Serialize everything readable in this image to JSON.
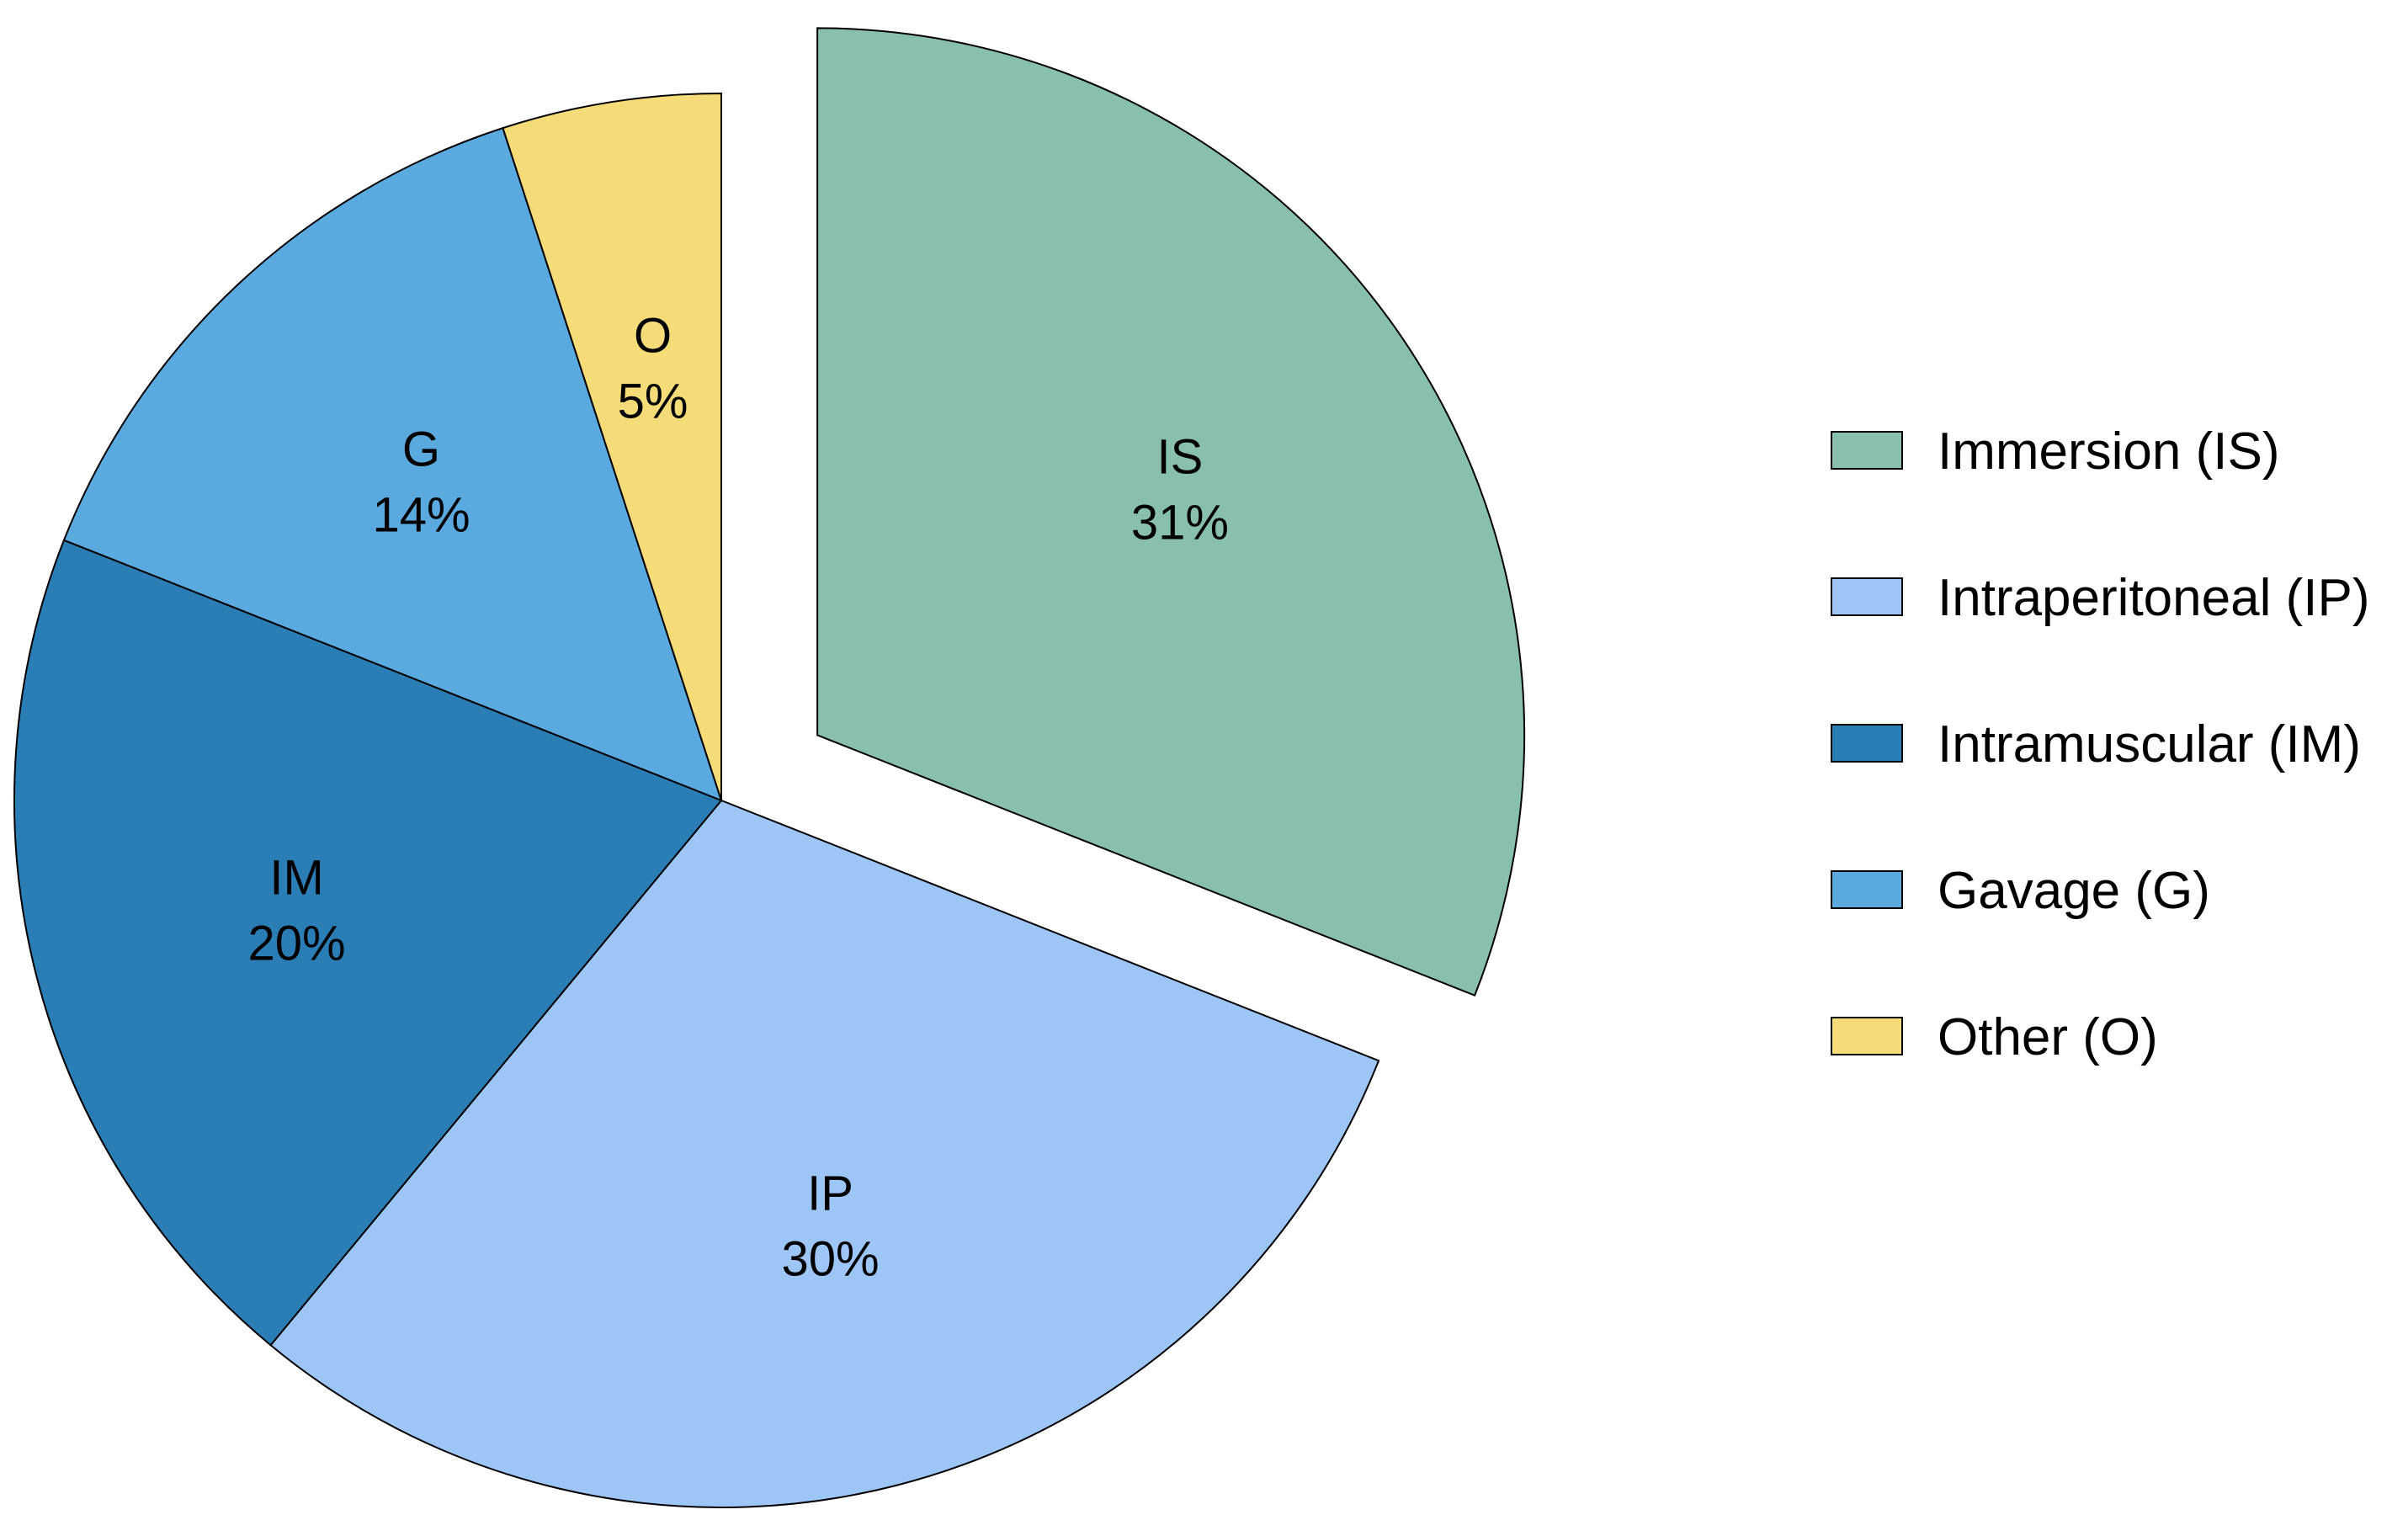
{
  "chart_data": {
    "type": "pie",
    "slices": [
      {
        "abbr": "IS",
        "name": "Immersion (IS)",
        "value": 31,
        "pct_label": "31%",
        "color": "#88c0ad",
        "exploded": true
      },
      {
        "abbr": "IP",
        "name": "Intraperitoneal (IP)",
        "value": 30,
        "pct_label": "30%",
        "color": "#9dc6f7",
        "exploded": false
      },
      {
        "abbr": "IM",
        "name": "Intramuscular (IM)",
        "value": 20,
        "pct_label": "20%",
        "color": "#2b7db6",
        "exploded": false
      },
      {
        "abbr": "G",
        "name": "Gavage (G)",
        "value": 14,
        "pct_label": "14%",
        "color": "#5aaae0",
        "exploded": false
      },
      {
        "abbr": "O",
        "name": "Other (O)",
        "value": 5,
        "pct_label": "5%",
        "color": "#f5dc78",
        "exploded": false
      }
    ],
    "start_direction": "12 o'clock",
    "direction": "clockwise",
    "legend_position": "right",
    "title": ""
  }
}
